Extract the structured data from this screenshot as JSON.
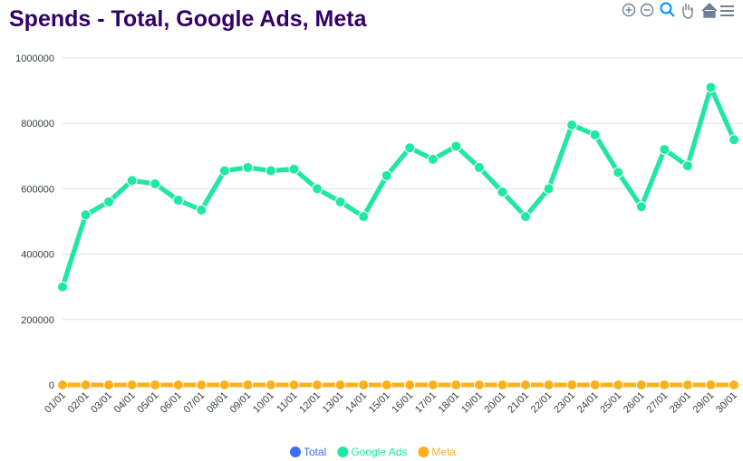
{
  "chart_data": {
    "type": "line",
    "title": "Spends - Total, Google Ads, Meta",
    "categories": [
      "01/01",
      "02/01",
      "03/01",
      "04/01",
      "05/01",
      "06/01",
      "07/01",
      "08/01",
      "09/01",
      "10/01",
      "11/01",
      "12/01",
      "13/01",
      "14/01",
      "15/01",
      "16/01",
      "17/01",
      "18/01",
      "19/01",
      "20/01",
      "21/01",
      "22/01",
      "23/01",
      "24/01",
      "25/01",
      "26/01",
      "27/01",
      "28/01",
      "29/01",
      "30/01"
    ],
    "series": [
      {
        "name": "Total",
        "color": "#3a6ff7",
        "values": [
          300000,
          520000,
          560000,
          625000,
          615000,
          565000,
          535000,
          655000,
          665000,
          655000,
          660000,
          600000,
          560000,
          515000,
          640000,
          725000,
          690000,
          730000,
          665000,
          590000,
          515000,
          600000,
          795000,
          765000,
          650000,
          545000,
          720000,
          670000,
          910000,
          750000
        ]
      },
      {
        "name": "Google Ads",
        "color": "#1de9a0",
        "values": [
          300000,
          520000,
          560000,
          625000,
          615000,
          565000,
          535000,
          655000,
          665000,
          655000,
          660000,
          600000,
          560000,
          515000,
          640000,
          725000,
          690000,
          730000,
          665000,
          590000,
          515000,
          600000,
          795000,
          765000,
          650000,
          545000,
          720000,
          670000,
          910000,
          750000
        ]
      },
      {
        "name": "Meta",
        "color": "#feb019",
        "values": [
          0,
          0,
          0,
          0,
          0,
          0,
          0,
          0,
          0,
          0,
          0,
          0,
          0,
          0,
          0,
          0,
          0,
          0,
          0,
          0,
          0,
          0,
          0,
          0,
          0,
          0,
          0,
          0,
          0,
          0
        ]
      }
    ],
    "ylim": [
      0,
      1000000
    ],
    "yticks": [
      0,
      200000,
      400000,
      600000,
      800000,
      1000000
    ],
    "grid": true
  }
}
